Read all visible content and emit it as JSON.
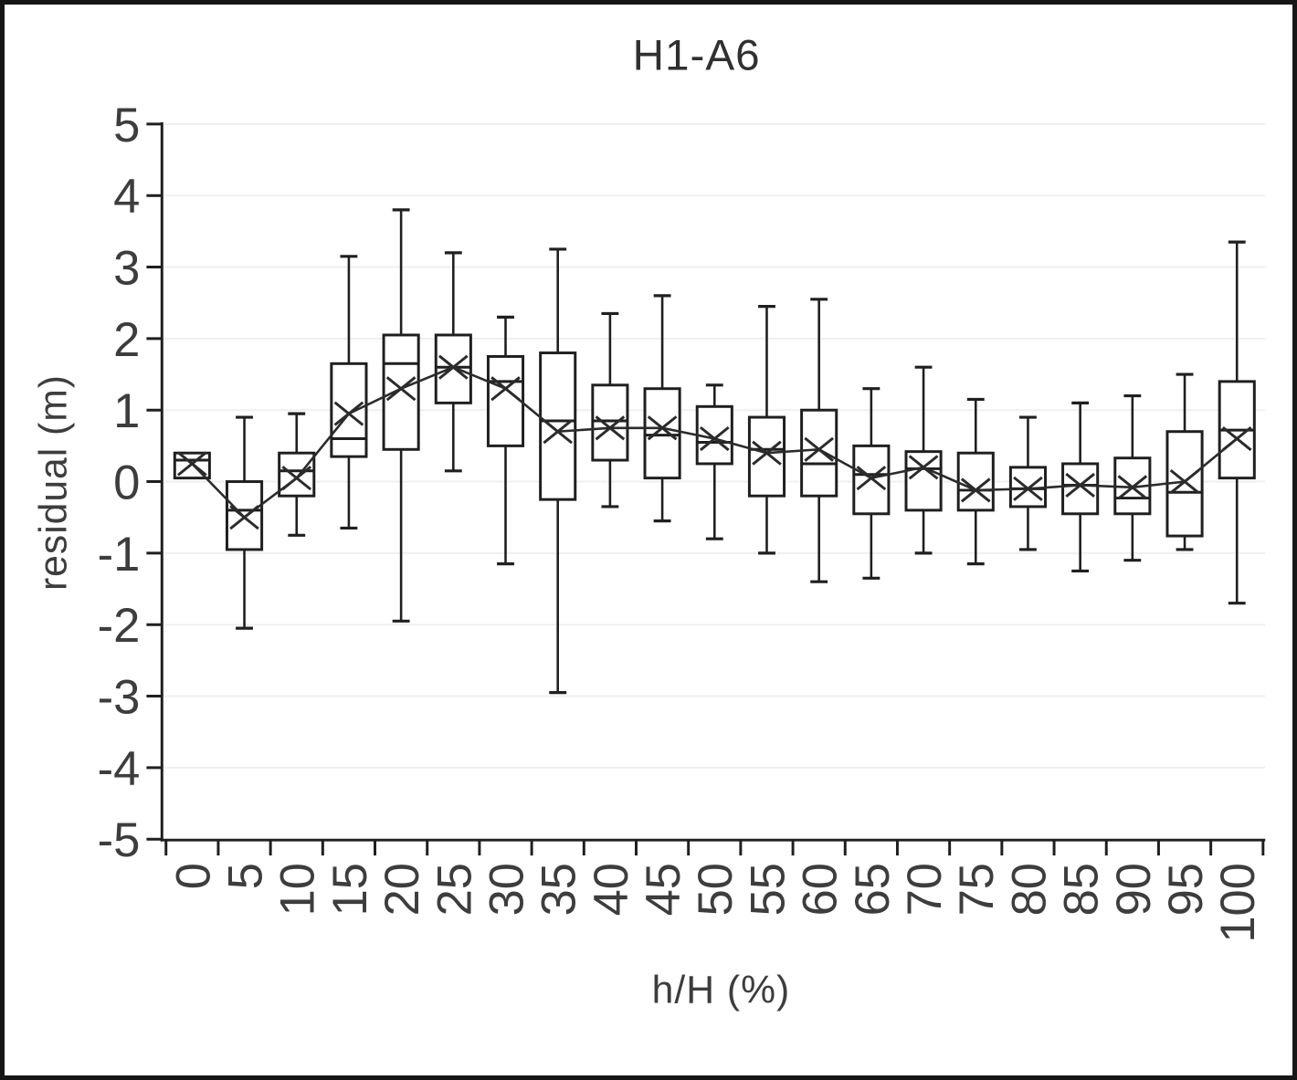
{
  "chart_data": {
    "type": "boxplot",
    "title": "H1-A6",
    "xlabel": "h/H (%)",
    "ylabel": "residual (m)",
    "ylim": [
      -5,
      5
    ],
    "yticks": [
      5,
      4,
      3,
      2,
      1,
      0,
      -1,
      -2,
      -3,
      -4,
      -5
    ],
    "categories": [
      "0",
      "5",
      "10",
      "15",
      "20",
      "25",
      "30",
      "35",
      "40",
      "45",
      "50",
      "55",
      "60",
      "65",
      "70",
      "75",
      "80",
      "85",
      "90",
      "95",
      "100"
    ],
    "grid": "horizontal gridlines at every integer, very light gray",
    "legend_position": "none",
    "mean_marker": "x",
    "mean_line": "line connecting mean markers across categories",
    "boxes": [
      {
        "x": "0",
        "whisker_low": 0.05,
        "q1": 0.05,
        "median": 0.3,
        "q3": 0.4,
        "whisker_high": 0.4,
        "mean": 0.25
      },
      {
        "x": "5",
        "whisker_low": -2.05,
        "q1": -0.95,
        "median": -0.4,
        "q3": 0.0,
        "whisker_high": 0.9,
        "mean": -0.5
      },
      {
        "x": "10",
        "whisker_low": -0.75,
        "q1": -0.2,
        "median": 0.15,
        "q3": 0.4,
        "whisker_high": 0.95,
        "mean": 0.05
      },
      {
        "x": "15",
        "whisker_low": -0.65,
        "q1": 0.35,
        "median": 0.6,
        "q3": 1.65,
        "whisker_high": 3.15,
        "mean": 0.95
      },
      {
        "x": "20",
        "whisker_low": -1.95,
        "q1": 0.45,
        "median": 1.65,
        "q3": 2.05,
        "whisker_high": 3.8,
        "mean": 1.3
      },
      {
        "x": "25",
        "whisker_low": 0.15,
        "q1": 1.1,
        "median": 1.6,
        "q3": 2.05,
        "whisker_high": 3.2,
        "mean": 1.6
      },
      {
        "x": "30",
        "whisker_low": -1.15,
        "q1": 0.5,
        "median": 1.4,
        "q3": 1.75,
        "whisker_high": 2.3,
        "mean": 1.3
      },
      {
        "x": "35",
        "whisker_low": -2.95,
        "q1": -0.25,
        "median": 0.85,
        "q3": 1.8,
        "whisker_high": 3.25,
        "mean": 0.7
      },
      {
        "x": "40",
        "whisker_low": -0.35,
        "q1": 0.3,
        "median": 0.85,
        "q3": 1.35,
        "whisker_high": 2.35,
        "mean": 0.75
      },
      {
        "x": "45",
        "whisker_low": -0.55,
        "q1": 0.05,
        "median": 0.65,
        "q3": 1.3,
        "whisker_high": 2.6,
        "mean": 0.75
      },
      {
        "x": "50",
        "whisker_low": -0.8,
        "q1": 0.25,
        "median": 0.55,
        "q3": 1.05,
        "whisker_high": 1.35,
        "mean": 0.6
      },
      {
        "x": "55",
        "whisker_low": -1.0,
        "q1": -0.2,
        "median": 0.45,
        "q3": 0.9,
        "whisker_high": 2.45,
        "mean": 0.4
      },
      {
        "x": "60",
        "whisker_low": -1.4,
        "q1": -0.2,
        "median": 0.25,
        "q3": 1.0,
        "whisker_high": 2.55,
        "mean": 0.45
      },
      {
        "x": "65",
        "whisker_low": -1.35,
        "q1": -0.45,
        "median": 0.1,
        "q3": 0.5,
        "whisker_high": 1.3,
        "mean": 0.05
      },
      {
        "x": "70",
        "whisker_low": -1.0,
        "q1": -0.4,
        "median": 0.18,
        "q3": 0.42,
        "whisker_high": 1.6,
        "mean": 0.2
      },
      {
        "x": "75",
        "whisker_low": -1.15,
        "q1": -0.4,
        "median": -0.12,
        "q3": 0.4,
        "whisker_high": 1.15,
        "mean": -0.12
      },
      {
        "x": "80",
        "whisker_low": -0.95,
        "q1": -0.35,
        "median": -0.1,
        "q3": 0.2,
        "whisker_high": 0.9,
        "mean": -0.1
      },
      {
        "x": "85",
        "whisker_low": -1.25,
        "q1": -0.45,
        "median": -0.05,
        "q3": 0.25,
        "whisker_high": 1.1,
        "mean": -0.05
      },
      {
        "x": "90",
        "whisker_low": -1.1,
        "q1": -0.45,
        "median": -0.23,
        "q3": 0.33,
        "whisker_high": 1.2,
        "mean": -0.08
      },
      {
        "x": "95",
        "whisker_low": -0.95,
        "q1": -0.76,
        "median": -0.15,
        "q3": 0.7,
        "whisker_high": 1.5,
        "mean": 0.0
      },
      {
        "x": "100",
        "whisker_low": -1.7,
        "q1": 0.05,
        "median": 0.72,
        "q3": 1.4,
        "whisker_high": 3.35,
        "mean": 0.6
      }
    ],
    "colors": {
      "stroke": "#1f1f1f",
      "grid": "#efefef",
      "text": "#3d3d3d",
      "box_fill": "#ffffff",
      "mean_line": "#2b2b2b",
      "frame_border": "#161616",
      "background": "#ffffff"
    }
  }
}
